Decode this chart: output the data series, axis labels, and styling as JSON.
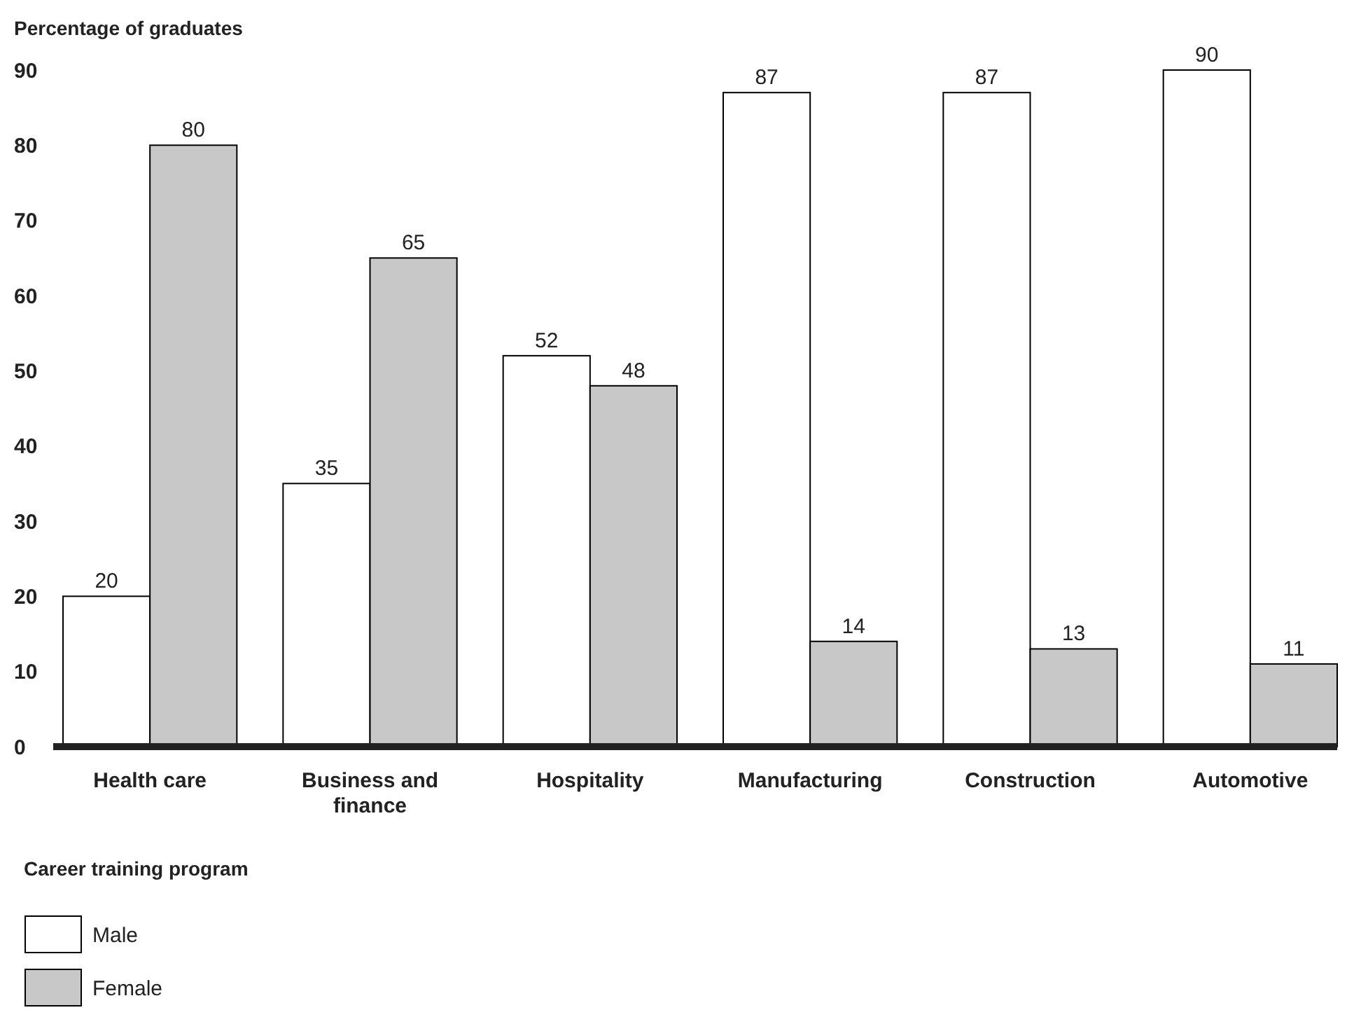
{
  "chart_data": {
    "type": "bar",
    "ylabel": "Percentage of graduates",
    "xlabel": "Career training program",
    "categories": [
      "Health care",
      "Business and finance",
      "Hospitality",
      "Manufacturing",
      "Construction",
      "Automotive"
    ],
    "series": [
      {
        "name": "Male",
        "color": "#ffffff",
        "values": [
          20,
          35,
          52,
          87,
          87,
          90
        ]
      },
      {
        "name": "Female",
        "color": "#c8c8c8",
        "values": [
          80,
          65,
          48,
          14,
          13,
          11
        ]
      }
    ],
    "ylim": [
      0,
      90
    ],
    "yticks": [
      0,
      10,
      20,
      30,
      40,
      50,
      60,
      70,
      80,
      90
    ],
    "data_labels": true,
    "legend": "bottom left",
    "grid": false
  }
}
